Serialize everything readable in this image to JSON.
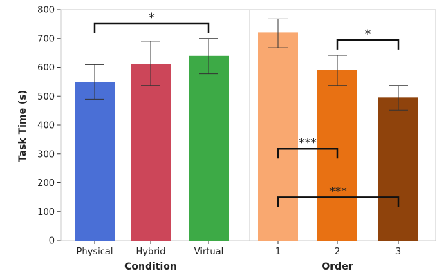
{
  "chart_data": {
    "type": "bar",
    "ylabel": "Task Time (s)",
    "ylim": [
      0,
      800
    ],
    "yticks": [
      "0",
      "100",
      "200",
      "300",
      "400",
      "500",
      "600",
      "700",
      "800"
    ],
    "grid": false,
    "panels": [
      {
        "xlabel": "Condition",
        "categories": [
          "Physical",
          "Hybrid",
          "Virtual"
        ],
        "values": [
          550,
          613,
          640
        ],
        "error_low": [
          490,
          537,
          578
        ],
        "error_high": [
          610,
          690,
          700
        ],
        "colors": [
          "#4a6fd6",
          "#cc4659",
          "#3daa46"
        ],
        "significance": [
          {
            "from": 0,
            "to": 2,
            "label": "*",
            "y": 752,
            "direction": "down"
          }
        ]
      },
      {
        "xlabel": "Order",
        "categories": [
          "1",
          "2",
          "3"
        ],
        "values": [
          720,
          590,
          495
        ],
        "error_low": [
          668,
          537,
          452
        ],
        "error_high": [
          768,
          642,
          537
        ],
        "colors": [
          "#f9a870",
          "#e87113",
          "#8f430c"
        ],
        "significance": [
          {
            "from": 1,
            "to": 2,
            "label": "*",
            "y": 695,
            "direction": "down"
          },
          {
            "from": 0,
            "to": 1,
            "label": "***",
            "y": 318,
            "direction": "down"
          },
          {
            "from": 0,
            "to": 2,
            "label": "***",
            "y": 150,
            "direction": "down"
          }
        ]
      }
    ]
  }
}
